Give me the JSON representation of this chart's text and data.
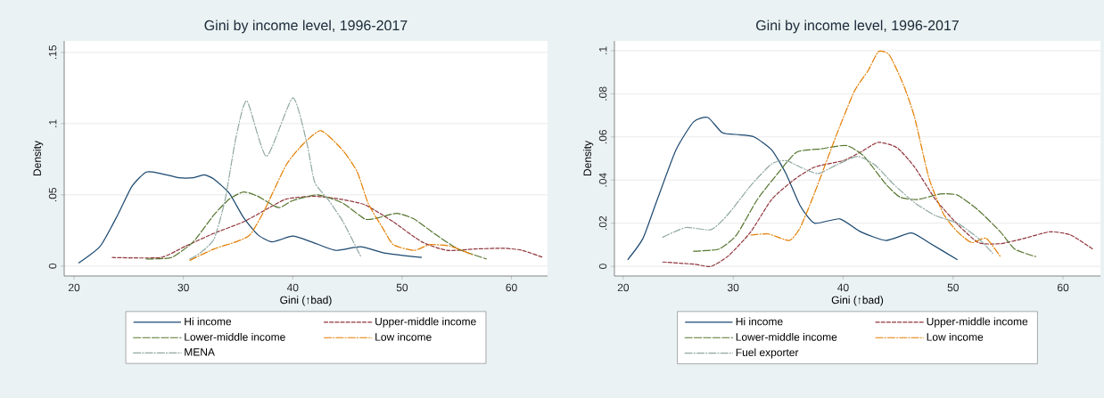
{
  "chart_data": [
    {
      "type": "line",
      "title": "Gini by income level, 1996-2017",
      "xlabel": "Gini (↑bad)",
      "ylabel": "Density",
      "xlim": [
        19.1,
        63.3
      ],
      "ylim": [
        -0.007,
        0.158
      ],
      "xticks": [
        20,
        30,
        40,
        50,
        60
      ],
      "yticks": [
        0,
        {
          "value": 0.05,
          "label": ".05"
        },
        {
          "value": 0.1,
          "label": ".1"
        },
        {
          "value": 0.15,
          "label": ".15"
        }
      ],
      "grid": "y",
      "legend": "bottom",
      "series": [
        {
          "name": "Hi income",
          "color": "#1a476f",
          "line_style": "solid",
          "x": [
            20.4,
            22.4,
            24,
            25.3,
            26.6,
            27.9,
            29.6,
            30.9,
            31.9,
            32.8,
            34.2,
            35.5,
            36.8,
            38.1,
            40,
            41.7,
            43.9,
            46.2,
            48.5,
            51.8
          ],
          "values": [
            0.002,
            0.014,
            0.036,
            0.056,
            0.066,
            0.065,
            0.062,
            0.062,
            0.064,
            0.061,
            0.051,
            0.034,
            0.022,
            0.017,
            0.021,
            0.017,
            0.011,
            0.0135,
            0.009,
            0.006
          ]
        },
        {
          "name": "Upper-middle income",
          "color": "#90353b",
          "line_style": "dashed",
          "x": [
            23.5,
            27.9,
            30.2,
            32.8,
            35.5,
            37.4,
            39.4,
            42,
            44.3,
            46.6,
            49.2,
            51.8,
            54.1,
            56.7,
            59.3,
            61,
            62.9
          ],
          "values": [
            0.006,
            0.006,
            0.014,
            0.023,
            0.031,
            0.039,
            0.047,
            0.049,
            0.047,
            0.043,
            0.031,
            0.017,
            0.011,
            0.012,
            0.0125,
            0.011,
            0.006
          ]
        },
        {
          "name": "Lower-middle income",
          "color": "#55752f",
          "line_style": "longdash",
          "x": [
            26.6,
            28.9,
            30.9,
            32.8,
            34.2,
            35.5,
            36.8,
            38.7,
            40,
            42.3,
            44.6,
            46.6,
            47.9,
            49.5,
            51.1,
            53.1,
            55.1,
            57.7
          ],
          "values": [
            0.005,
            0.006,
            0.017,
            0.036,
            0.047,
            0.052,
            0.049,
            0.041,
            0.046,
            0.05,
            0.044,
            0.033,
            0.034,
            0.037,
            0.033,
            0.022,
            0.012,
            0.005
          ]
        },
        {
          "name": "Low income",
          "color": "#e37e00",
          "line_style": "dashdot",
          "x": [
            30.6,
            32.8,
            34.8,
            36.1,
            37.4,
            39.4,
            41,
            42.6,
            44.6,
            45.9,
            46.9,
            48.2,
            49.2,
            51.1,
            52.5,
            54.4,
            56.4
          ],
          "values": [
            0.004,
            0.012,
            0.017,
            0.022,
            0.039,
            0.071,
            0.086,
            0.095,
            0.081,
            0.066,
            0.044,
            0.027,
            0.015,
            0.011,
            0.015,
            0.014,
            0.008
          ]
        },
        {
          "name": "MENA",
          "color": "#8fa8a0",
          "line_style": "dashdot",
          "x": [
            30.6,
            31.5,
            32.8,
            33.8,
            34.8,
            35.8,
            37.6,
            40,
            41.3,
            42,
            43.3,
            44.6,
            46.2
          ],
          "values": [
            0.005,
            0.009,
            0.019,
            0.046,
            0.09,
            0.116,
            0.077,
            0.118,
            0.086,
            0.059,
            0.046,
            0.031,
            0.007
          ]
        }
      ]
    },
    {
      "type": "line",
      "title": "Gini by income level, 1996-2017",
      "xlabel": "Gini (↑bad)",
      "ylabel": "Density",
      "xlim": [
        19.2,
        63.4
      ],
      "ylim": [
        -0.0045,
        0.1045
      ],
      "xticks": [
        20,
        30,
        40,
        50,
        60
      ],
      "yticks": [
        0,
        {
          "value": 0.02,
          "label": ".02"
        },
        {
          "value": 0.04,
          "label": ".04"
        },
        {
          "value": 0.06,
          "label": ".06"
        },
        {
          "value": 0.08,
          "label": ".08"
        },
        {
          "value": 0.1,
          "label": ".1"
        }
      ],
      "grid": "y",
      "legend": "bottom",
      "series": [
        {
          "name": "Hi income",
          "color": "#1a476f",
          "line_style": "solid",
          "x": [
            20.4,
            21.8,
            23.1,
            24.8,
            26.4,
            27.7,
            29,
            30.6,
            31.9,
            33.5,
            34.8,
            36.1,
            37.4,
            39.7,
            41.6,
            43.9,
            46.2,
            47.8,
            50.4
          ],
          "values": [
            0.003,
            0.013,
            0.031,
            0.054,
            0.067,
            0.069,
            0.062,
            0.061,
            0.06,
            0.054,
            0.043,
            0.028,
            0.02,
            0.022,
            0.016,
            0.012,
            0.0155,
            0.011,
            0.003
          ]
        },
        {
          "name": "Upper-middle income",
          "color": "#90353b",
          "line_style": "dashed",
          "x": [
            23.6,
            26.4,
            28,
            29.6,
            31.6,
            33.5,
            35.5,
            37.4,
            40,
            41.6,
            43.2,
            44.9,
            46.5,
            48.4,
            50.4,
            52.3,
            54.3,
            56.5,
            58.8,
            60.7,
            62.7
          ],
          "values": [
            0.002,
            0.001,
            0,
            0.005,
            0.016,
            0.031,
            0.04,
            0.046,
            0.049,
            0.053,
            0.0575,
            0.055,
            0.046,
            0.031,
            0.0195,
            0.011,
            0.0105,
            0.013,
            0.016,
            0.0145,
            0.008
          ]
        },
        {
          "name": "Lower-middle income",
          "color": "#55752f",
          "line_style": "longdash",
          "x": [
            26.4,
            28.7,
            30.3,
            32.2,
            34.2,
            35.8,
            38,
            40.3,
            41.9,
            43.9,
            45.2,
            46.8,
            48.8,
            50.4,
            52.3,
            54.3,
            55.6,
            57.5
          ],
          "values": [
            0.007,
            0.008,
            0.0145,
            0.031,
            0.044,
            0.053,
            0.0545,
            0.056,
            0.051,
            0.038,
            0.032,
            0.031,
            0.0335,
            0.033,
            0.026,
            0.016,
            0.008,
            0.0045
          ]
        },
        {
          "name": "Low income",
          "color": "#e37e00",
          "line_style": "dashdot",
          "x": [
            31.6,
            33.2,
            35.1,
            36.1,
            37.4,
            39.4,
            41,
            42.3,
            43.2,
            44.2,
            45.5,
            46.5,
            47.8,
            49.1,
            50.4,
            51.7,
            53,
            54.3
          ],
          "values": [
            0.0145,
            0.015,
            0.012,
            0.018,
            0.034,
            0.061,
            0.081,
            0.091,
            0.0995,
            0.098,
            0.084,
            0.069,
            0.041,
            0.0245,
            0.016,
            0.011,
            0.013,
            0.0045
          ]
        },
        {
          "name": "Fuel exporter",
          "color": "#8fa8a0",
          "line_style": "dashdot",
          "x": [
            23.6,
            25.7,
            28,
            29.6,
            31.6,
            33.5,
            34.8,
            36.1,
            37.7,
            39.4,
            41.3,
            42.9,
            44.6,
            46.5,
            48.4,
            50.4,
            52.3,
            53.6
          ],
          "values": [
            0.0135,
            0.018,
            0.017,
            0.0245,
            0.0375,
            0.0475,
            0.049,
            0.046,
            0.043,
            0.047,
            0.051,
            0.047,
            0.038,
            0.0295,
            0.0235,
            0.02,
            0.013,
            0.006
          ]
        }
      ]
    }
  ]
}
